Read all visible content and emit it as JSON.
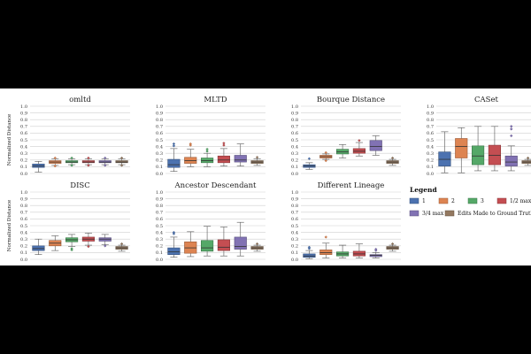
{
  "figure": {
    "ylabel": "Normalized Distance",
    "yticks": [
      "0.0",
      "0.1",
      "0.2",
      "0.3",
      "0.4",
      "0.5",
      "0.6",
      "0.7",
      "0.8",
      "0.9",
      "1.0"
    ],
    "legend": {
      "title": "Legend",
      "items": [
        {
          "label": "1",
          "color": "#4c72b0"
        },
        {
          "label": "2",
          "color": "#dd8452"
        },
        {
          "label": "3",
          "color": "#55a868"
        },
        {
          "label": "1/2 max",
          "color": "#c44e52"
        },
        {
          "label": "3/4 max",
          "color": "#8172b3"
        },
        {
          "label": "Edits Made to Ground Truth",
          "color": "#937860"
        }
      ]
    }
  },
  "chart_data": [
    {
      "type": "box",
      "title": "omltd",
      "ylim": [
        0,
        1
      ],
      "series": [
        "1",
        "2",
        "3",
        "1/2 max",
        "3/4 max",
        "Edits Made to Ground Truth"
      ],
      "boxes": [
        {
          "min": 0.02,
          "q1": 0.09,
          "median": 0.11,
          "q3": 0.14,
          "max": 0.18,
          "outliers": []
        },
        {
          "min": 0.12,
          "q1": 0.15,
          "median": 0.17,
          "q3": 0.19,
          "max": 0.22,
          "outliers": [
            0.11,
            0.23
          ]
        },
        {
          "min": 0.13,
          "q1": 0.16,
          "median": 0.17,
          "q3": 0.19,
          "max": 0.22,
          "outliers": [
            0.12,
            0.23
          ]
        },
        {
          "min": 0.13,
          "q1": 0.16,
          "median": 0.17,
          "q3": 0.19,
          "max": 0.22,
          "outliers": [
            0.12,
            0.23
          ]
        },
        {
          "min": 0.13,
          "q1": 0.16,
          "median": 0.17,
          "q3": 0.19,
          "max": 0.22,
          "outliers": [
            0.12,
            0.23
          ]
        },
        {
          "min": 0.13,
          "q1": 0.16,
          "median": 0.17,
          "q3": 0.19,
          "max": 0.22,
          "outliers": [
            0.12,
            0.23
          ]
        }
      ]
    },
    {
      "type": "box",
      "title": "MLTD",
      "ylim": [
        0,
        1
      ],
      "series": [
        "1",
        "2",
        "3",
        "1/2 max",
        "3/4 max",
        "Edits Made to Ground Truth"
      ],
      "boxes": [
        {
          "min": 0.03,
          "q1": 0.09,
          "median": 0.13,
          "q3": 0.21,
          "max": 0.37,
          "outliers": [
            0.41,
            0.44
          ]
        },
        {
          "min": 0.1,
          "q1": 0.15,
          "median": 0.19,
          "q3": 0.24,
          "max": 0.36,
          "outliers": [
            0.42,
            0.44
          ]
        },
        {
          "min": 0.1,
          "q1": 0.16,
          "median": 0.19,
          "q3": 0.23,
          "max": 0.3,
          "outliers": [
            0.33,
            0.36
          ]
        },
        {
          "min": 0.11,
          "q1": 0.16,
          "median": 0.2,
          "q3": 0.26,
          "max": 0.37,
          "outliers": [
            0.42,
            0.45
          ]
        },
        {
          "min": 0.11,
          "q1": 0.17,
          "median": 0.2,
          "q3": 0.27,
          "max": 0.44,
          "outliers": []
        },
        {
          "min": 0.12,
          "q1": 0.15,
          "median": 0.17,
          "q3": 0.19,
          "max": 0.22,
          "outliers": [
            0.24
          ]
        }
      ]
    },
    {
      "type": "box",
      "title": "Bourque Distance",
      "ylim": [
        0,
        1
      ],
      "series": [
        "1",
        "2",
        "3",
        "1/2 max",
        "3/4 max",
        "Edits Made to Ground Truth"
      ],
      "boxes": [
        {
          "min": 0.06,
          "q1": 0.09,
          "median": 0.11,
          "q3": 0.13,
          "max": 0.16,
          "outliers": [
            0.22
          ]
        },
        {
          "min": 0.21,
          "q1": 0.23,
          "median": 0.25,
          "q3": 0.27,
          "max": 0.29,
          "outliers": [
            0.19,
            0.31
          ]
        },
        {
          "min": 0.23,
          "q1": 0.29,
          "median": 0.32,
          "q3": 0.36,
          "max": 0.43,
          "outliers": []
        },
        {
          "min": 0.26,
          "q1": 0.3,
          "median": 0.33,
          "q3": 0.37,
          "max": 0.46,
          "outliers": [
            0.49
          ]
        },
        {
          "min": 0.27,
          "q1": 0.34,
          "median": 0.4,
          "q3": 0.49,
          "max": 0.56,
          "outliers": []
        },
        {
          "min": 0.12,
          "q1": 0.15,
          "median": 0.17,
          "q3": 0.19,
          "max": 0.21,
          "outliers": [
            0.23
          ]
        }
      ]
    },
    {
      "type": "box",
      "title": "CASet",
      "ylim": [
        0,
        1
      ],
      "series": [
        "1",
        "2",
        "3",
        "1/2 max",
        "3/4 max",
        "Edits Made to Ground Truth"
      ],
      "boxes": [
        {
          "min": 0.01,
          "q1": 0.11,
          "median": 0.21,
          "q3": 0.32,
          "max": 0.62,
          "outliers": []
        },
        {
          "min": 0.01,
          "q1": 0.23,
          "median": 0.4,
          "q3": 0.52,
          "max": 0.68,
          "outliers": []
        },
        {
          "min": 0.04,
          "q1": 0.13,
          "median": 0.26,
          "q3": 0.41,
          "max": 0.7,
          "outliers": []
        },
        {
          "min": 0.04,
          "q1": 0.13,
          "median": 0.27,
          "q3": 0.42,
          "max": 0.7,
          "outliers": []
        },
        {
          "min": 0.04,
          "q1": 0.11,
          "median": 0.17,
          "q3": 0.26,
          "max": 0.41,
          "outliers": [
            0.56,
            0.66,
            0.7
          ]
        },
        {
          "min": 0.12,
          "q1": 0.15,
          "median": 0.17,
          "q3": 0.19,
          "max": 0.21,
          "outliers": [
            0.23
          ]
        }
      ]
    },
    {
      "type": "box",
      "title": "DISC",
      "ylim": [
        0,
        1
      ],
      "series": [
        "1",
        "2",
        "3",
        "1/2 max",
        "3/4 max",
        "Edits Made to Ground Truth"
      ],
      "boxes": [
        {
          "min": 0.07,
          "q1": 0.13,
          "median": 0.16,
          "q3": 0.2,
          "max": 0.3,
          "outliers": []
        },
        {
          "min": 0.13,
          "q1": 0.2,
          "median": 0.24,
          "q3": 0.28,
          "max": 0.35,
          "outliers": []
        },
        {
          "min": 0.19,
          "q1": 0.26,
          "median": 0.29,
          "q3": 0.32,
          "max": 0.37,
          "outliers": [
            0.14,
            0.16
          ]
        },
        {
          "min": 0.21,
          "q1": 0.27,
          "median": 0.3,
          "q3": 0.33,
          "max": 0.39,
          "outliers": [
            0.19
          ]
        },
        {
          "min": 0.22,
          "q1": 0.27,
          "median": 0.3,
          "q3": 0.32,
          "max": 0.37,
          "outliers": [
            0.2
          ]
        },
        {
          "min": 0.12,
          "q1": 0.15,
          "median": 0.17,
          "q3": 0.19,
          "max": 0.21,
          "outliers": [
            0.23
          ]
        }
      ]
    },
    {
      "type": "box",
      "title": "Ancestor Descendant",
      "ylim": [
        0,
        1
      ],
      "series": [
        "1",
        "2",
        "3",
        "1/2 max",
        "3/4 max",
        "Edits Made to Ground Truth"
      ],
      "boxes": [
        {
          "min": 0.03,
          "q1": 0.07,
          "median": 0.11,
          "q3": 0.17,
          "max": 0.33,
          "outliers": [
            0.38,
            0.4
          ]
        },
        {
          "min": 0.04,
          "q1": 0.09,
          "median": 0.17,
          "q3": 0.26,
          "max": 0.41,
          "outliers": []
        },
        {
          "min": 0.05,
          "q1": 0.12,
          "median": 0.17,
          "q3": 0.28,
          "max": 0.49,
          "outliers": []
        },
        {
          "min": 0.05,
          "q1": 0.13,
          "median": 0.18,
          "q3": 0.29,
          "max": 0.48,
          "outliers": []
        },
        {
          "min": 0.05,
          "q1": 0.15,
          "median": 0.19,
          "q3": 0.33,
          "max": 0.55,
          "outliers": []
        },
        {
          "min": 0.12,
          "q1": 0.15,
          "median": 0.17,
          "q3": 0.19,
          "max": 0.21,
          "outliers": [
            0.23
          ]
        }
      ]
    },
    {
      "type": "box",
      "title": "Different Lineage",
      "ylim": [
        0,
        1
      ],
      "series": [
        "1",
        "2",
        "3",
        "1/2 max",
        "3/4 max",
        "Edits Made to Ground Truth"
      ],
      "boxes": [
        {
          "min": 0.01,
          "q1": 0.03,
          "median": 0.05,
          "q3": 0.08,
          "max": 0.13,
          "outliers": [
            0.16,
            0.18
          ]
        },
        {
          "min": 0.02,
          "q1": 0.07,
          "median": 0.1,
          "q3": 0.14,
          "max": 0.24,
          "outliers": [
            0.33
          ]
        },
        {
          "min": 0.02,
          "q1": 0.05,
          "median": 0.08,
          "q3": 0.11,
          "max": 0.21,
          "outliers": []
        },
        {
          "min": 0.02,
          "q1": 0.05,
          "median": 0.08,
          "q3": 0.12,
          "max": 0.23,
          "outliers": []
        },
        {
          "min": 0.02,
          "q1": 0.04,
          "median": 0.06,
          "q3": 0.07,
          "max": 0.1,
          "outliers": [
            0.13,
            0.15
          ]
        },
        {
          "min": 0.12,
          "q1": 0.15,
          "median": 0.17,
          "q3": 0.19,
          "max": 0.21,
          "outliers": [
            0.23
          ]
        }
      ]
    }
  ]
}
